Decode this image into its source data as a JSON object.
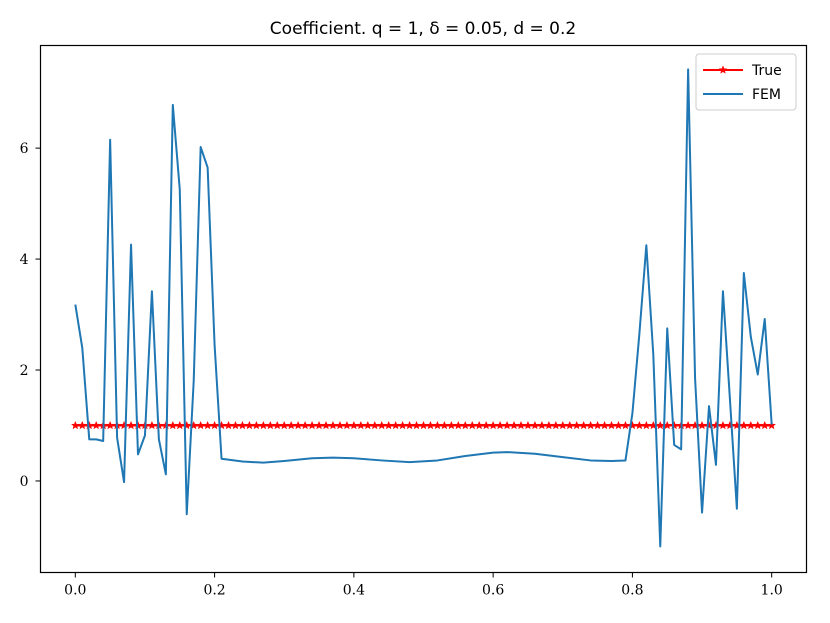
{
  "chart_data": {
    "type": "line",
    "title": "Coefficient. q = 1, δ = 0.05, d = 0.2",
    "xlabel": "",
    "ylabel": "",
    "xlim": [
      -0.05,
      1.05
    ],
    "ylim": [
      -1.65,
      7.85
    ],
    "xticks": [
      0.0,
      0.2,
      0.4,
      0.6,
      0.8,
      1.0
    ],
    "xtick_labels": [
      "0.0",
      "0.2",
      "0.4",
      "0.6",
      "0.8",
      "1.0"
    ],
    "yticks": [
      0,
      2,
      4,
      6
    ],
    "ytick_labels": [
      "0",
      "2",
      "4",
      "6"
    ],
    "grid": false,
    "legend_position": "top-right",
    "series": [
      {
        "name": "True",
        "color": "#ff0000",
        "marker": "star",
        "x": [
          0.0,
          0.01,
          0.02,
          0.03,
          0.04,
          0.05,
          0.06,
          0.07,
          0.08,
          0.09,
          0.1,
          0.11,
          0.12,
          0.13,
          0.14,
          0.15,
          0.16,
          0.17,
          0.18,
          0.19,
          0.2,
          0.21,
          0.22,
          0.23,
          0.24,
          0.25,
          0.26,
          0.27,
          0.28,
          0.29,
          0.3,
          0.31,
          0.32,
          0.33,
          0.34,
          0.35,
          0.36,
          0.37,
          0.38,
          0.39,
          0.4,
          0.41,
          0.42,
          0.43,
          0.44,
          0.45,
          0.46,
          0.47,
          0.48,
          0.49,
          0.5,
          0.51,
          0.52,
          0.53,
          0.54,
          0.55,
          0.56,
          0.57,
          0.58,
          0.59,
          0.6,
          0.61,
          0.62,
          0.63,
          0.64,
          0.65,
          0.66,
          0.67,
          0.68,
          0.69,
          0.7,
          0.71,
          0.72,
          0.73,
          0.74,
          0.75,
          0.76,
          0.77,
          0.78,
          0.79,
          0.8,
          0.81,
          0.82,
          0.83,
          0.84,
          0.85,
          0.86,
          0.87,
          0.88,
          0.89,
          0.9,
          0.91,
          0.92,
          0.93,
          0.94,
          0.95,
          0.96,
          0.97,
          0.98,
          0.99,
          1.0
        ],
        "y": [
          1,
          1,
          1,
          1,
          1,
          1,
          1,
          1,
          1,
          1,
          1,
          1,
          1,
          1,
          1,
          1,
          1,
          1,
          1,
          1,
          1,
          1,
          1,
          1,
          1,
          1,
          1,
          1,
          1,
          1,
          1,
          1,
          1,
          1,
          1,
          1,
          1,
          1,
          1,
          1,
          1,
          1,
          1,
          1,
          1,
          1,
          1,
          1,
          1,
          1,
          1,
          1,
          1,
          1,
          1,
          1,
          1,
          1,
          1,
          1,
          1,
          1,
          1,
          1,
          1,
          1,
          1,
          1,
          1,
          1,
          1,
          1,
          1,
          1,
          1,
          1,
          1,
          1,
          1,
          1,
          1,
          1,
          1,
          1,
          1,
          1,
          1,
          1,
          1,
          1,
          1,
          1,
          1,
          1,
          1,
          1,
          1,
          1,
          1,
          1,
          1
        ]
      },
      {
        "name": "FEM",
        "color": "#1f77b4",
        "marker": "none",
        "x": [
          0.0,
          0.01,
          0.02,
          0.03,
          0.04,
          0.05,
          0.06,
          0.07,
          0.08,
          0.09,
          0.1,
          0.11,
          0.12,
          0.13,
          0.14,
          0.15,
          0.16,
          0.17,
          0.18,
          0.19,
          0.2,
          0.21,
          0.24,
          0.27,
          0.3,
          0.34,
          0.37,
          0.4,
          0.44,
          0.48,
          0.52,
          0.56,
          0.6,
          0.62,
          0.66,
          0.7,
          0.74,
          0.77,
          0.79,
          0.8,
          0.81,
          0.82,
          0.83,
          0.84,
          0.85,
          0.86,
          0.87,
          0.88,
          0.89,
          0.9,
          0.91,
          0.92,
          0.93,
          0.94,
          0.95,
          0.96,
          0.97,
          0.98,
          0.99,
          1.0
        ],
        "y": [
          3.18,
          2.4,
          0.75,
          0.75,
          0.72,
          6.15,
          0.78,
          -0.02,
          4.26,
          0.48,
          0.82,
          3.42,
          0.75,
          0.12,
          6.78,
          5.25,
          -0.6,
          1.8,
          6.02,
          5.65,
          2.45,
          0.4,
          0.35,
          0.33,
          0.36,
          0.41,
          0.42,
          0.41,
          0.37,
          0.34,
          0.37,
          0.45,
          0.51,
          0.52,
          0.49,
          0.43,
          0.37,
          0.36,
          0.37,
          1.22,
          2.65,
          4.25,
          2.28,
          -1.18,
          2.75,
          0.65,
          0.57,
          7.42,
          1.85,
          -0.57,
          1.35,
          0.29,
          3.42,
          1.48,
          -0.5,
          3.75,
          2.6,
          1.92,
          2.92,
          1.02
        ]
      }
    ]
  }
}
